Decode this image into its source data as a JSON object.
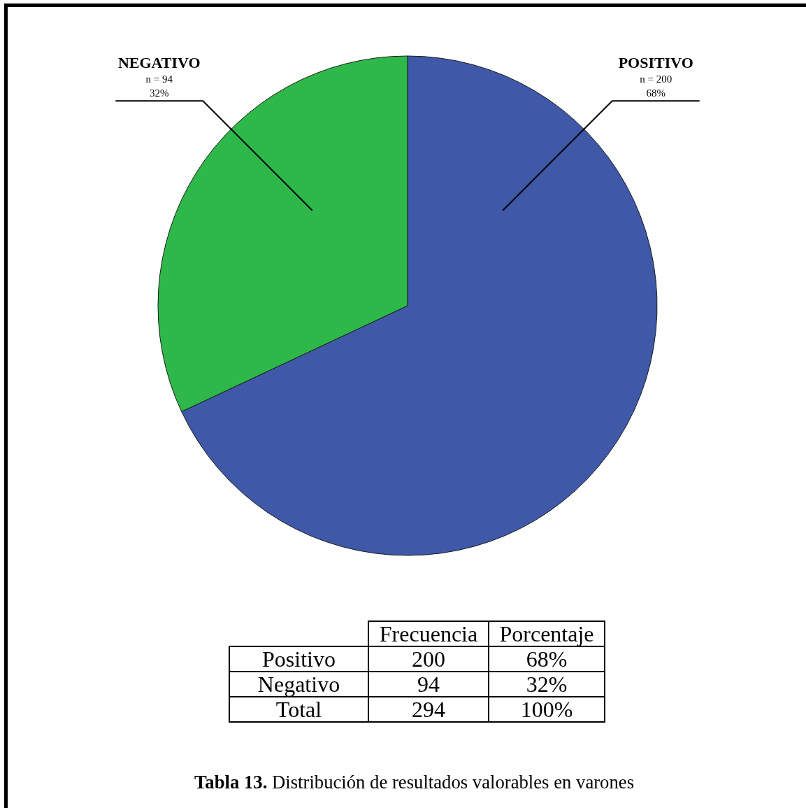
{
  "chart_data": {
    "type": "pie",
    "title": "Tabla 13. Distribución de resultados valorables en varones",
    "categories": [
      "POSITIVO",
      "NEGATIVO"
    ],
    "values": [
      200,
      94
    ],
    "value_labels": [
      "n = 200",
      "n = 94"
    ],
    "colors": [
      "#3f58a8",
      "#2eb84a"
    ],
    "legend": false,
    "annotations": [
      {
        "text": "68%",
        "x": "POSITIVO"
      },
      {
        "text": "32%",
        "x": "NEGATIVO"
      },
      "Frecuencia",
      "Porcentaje",
      "Positivo",
      "200",
      "68%",
      "Negativo",
      "94",
      "32%",
      "Total",
      "294",
      "100%"
    ]
  }
}
